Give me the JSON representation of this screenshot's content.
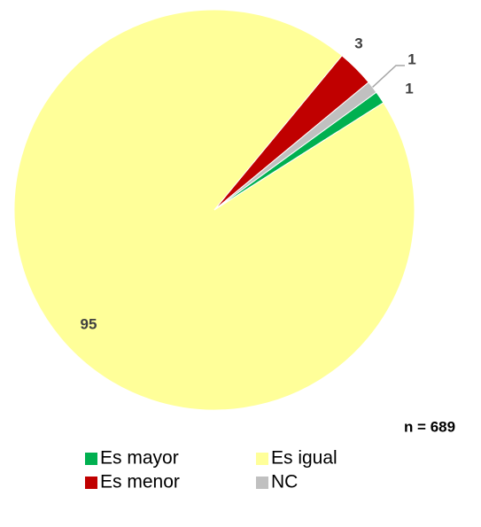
{
  "chart_data": {
    "type": "pie",
    "categories": [
      "Es mayor",
      "Es igual",
      "Es menor",
      "NC"
    ],
    "values": [
      1,
      95,
      3,
      1
    ],
    "colors": [
      "#00b050",
      "#ffff99",
      "#c00000",
      "#c0c0c0"
    ],
    "annotation": "n = 689"
  }
}
